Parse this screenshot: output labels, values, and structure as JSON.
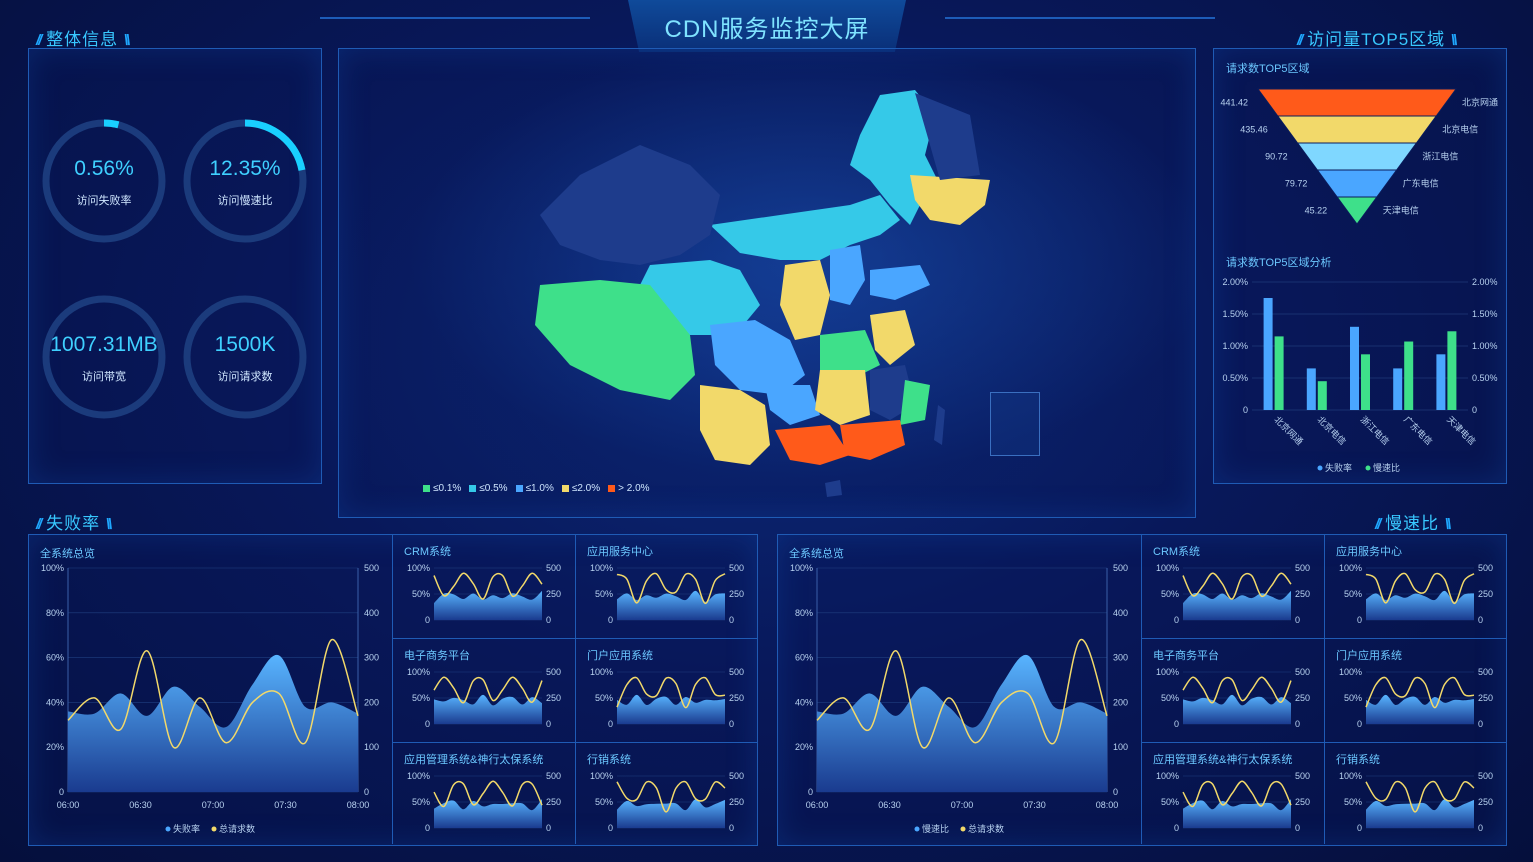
{
  "header": {
    "title": "CDN服务监控大屏"
  },
  "overview": {
    "title": "整体信息",
    "metrics": [
      {
        "value": "0.56%",
        "label": "访问失败率",
        "progress": 0.0056
      },
      {
        "value": "12.35%",
        "label": "访问慢速比",
        "progress": 0.1235
      },
      {
        "value": "1007.31MB",
        "label": "访问带宽",
        "progress": 0
      },
      {
        "value": "1500K",
        "label": "访问请求数",
        "progress": 0
      }
    ]
  },
  "map": {
    "legend": [
      {
        "label": "≤0.1%",
        "color": "#3ee08a"
      },
      {
        "label": "≤0.5%",
        "color": "#35c9e8"
      },
      {
        "label": "≤1.0%",
        "color": "#4aa6ff"
      },
      {
        "label": "≤2.0%",
        "color": "#f2d96a"
      },
      {
        "label": "> 2.0%",
        "color": "#ff5a1a"
      }
    ]
  },
  "top5": {
    "title": "访问量TOP5区域",
    "funnel_title": "请求数TOP5区域",
    "funnel": [
      {
        "name": "北京网通",
        "value": "441.42",
        "color": "#ff5a1a"
      },
      {
        "name": "北京电信",
        "value": "435.46",
        "color": "#f2d96a"
      },
      {
        "name": "浙江电信",
        "value": "90.72",
        "color": "#7fd7ff"
      },
      {
        "name": "广东电信",
        "value": "79.72",
        "color": "#4aa6ff"
      },
      {
        "name": "天津电信",
        "value": "45.22",
        "color": "#3ee08a"
      }
    ],
    "bar_title": "请求数TOP5区域分析",
    "bar_legend": [
      "失败率",
      "慢速比"
    ]
  },
  "failure": {
    "title": "失败率"
  },
  "slow": {
    "title": "慢速比"
  },
  "chart_data": [
    {
      "type": "bar",
      "title": "请求数TOP5区域分析",
      "categories": [
        "北京网通",
        "北京电信",
        "浙江电信",
        "广东电信",
        "天津电信"
      ],
      "series": [
        {
          "name": "失败率",
          "values": [
            1.75,
            0.65,
            1.3,
            0.65,
            0.87
          ],
          "color": "#4aa6ff"
        },
        {
          "name": "慢速比",
          "values": [
            1.15,
            0.45,
            0.87,
            1.07,
            1.23
          ],
          "color": "#3ee08a"
        }
      ],
      "y_ticks": [
        "0",
        "0.50%",
        "1.00%",
        "1.50%",
        "2.00%"
      ],
      "ylim": [
        0,
        2
      ]
    },
    {
      "type": "line",
      "title": "全系统总览",
      "x_ticks": [
        "06:00",
        "06:30",
        "07:00",
        "07:30",
        "08:00"
      ],
      "y_left_ticks": [
        "0",
        "20%",
        "40%",
        "60%",
        "80%",
        "100%"
      ],
      "y_right_ticks": [
        "0",
        "100",
        "200",
        "300",
        "400",
        "500"
      ],
      "series": [
        {
          "name": "失败率",
          "kind": "area",
          "values": [
            36,
            35,
            44,
            34,
            47,
            38,
            29,
            48,
            61,
            38,
            40,
            35
          ],
          "color": "#4aa6ff"
        },
        {
          "name": "总请求数",
          "kind": "line",
          "values": [
            160,
            210,
            140,
            315,
            100,
            210,
            110,
            200,
            220,
            110,
            340,
            170
          ],
          "color": "#f2d96a"
        }
      ]
    },
    {
      "type": "line",
      "title": "全系统总览",
      "x_ticks": [
        "06:00",
        "06:30",
        "07:00",
        "07:30",
        "08:00"
      ],
      "y_left_ticks": [
        "0",
        "20%",
        "40%",
        "60%",
        "80%",
        "100%"
      ],
      "y_right_ticks": [
        "0",
        "100",
        "200",
        "300",
        "400",
        "500"
      ],
      "series": [
        {
          "name": "慢速比",
          "kind": "area",
          "values": [
            36,
            35,
            44,
            34,
            47,
            38,
            29,
            48,
            61,
            38,
            40,
            35
          ],
          "color": "#4aa6ff"
        },
        {
          "name": "总请求数",
          "kind": "line",
          "values": [
            160,
            210,
            140,
            315,
            100,
            210,
            110,
            200,
            220,
            110,
            340,
            170
          ],
          "color": "#f2d96a"
        }
      ]
    }
  ],
  "small_charts": {
    "left_titles": [
      "CRM系统",
      "应用服务中心",
      "电子商务平台",
      "门户应用系统",
      "应用管理系统&神行太保系统",
      "行销系统"
    ],
    "right_titles": [
      "CRM系统",
      "应用服务中心",
      "电子商务平台",
      "门户应用系统",
      "应用管理系统&神行太保系统",
      "行销系统"
    ],
    "y_left_ticks": [
      "0",
      "50%",
      "100%"
    ],
    "y_right_ticks": [
      "0",
      "250",
      "500"
    ]
  },
  "big_chart_title": "全系统总览"
}
